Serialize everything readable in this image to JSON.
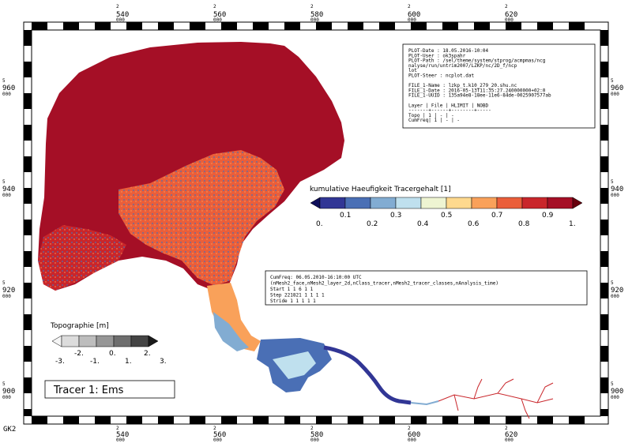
{
  "colors": {
    "tracer_high": "#a50f26",
    "topo_dark": "#1b1b1b"
  },
  "axes": {
    "x_tick_values": [
      {
        "top": "2",
        "main": "540",
        "sub": "000"
      },
      {
        "top": "2",
        "main": "560",
        "sub": "000"
      },
      {
        "top": "2",
        "main": "580",
        "sub": "000"
      },
      {
        "top": "2",
        "main": "600",
        "sub": "000"
      },
      {
        "top": "2",
        "main": "620",
        "sub": "000"
      }
    ],
    "y_tick_values": [
      {
        "top": "5",
        "main": "960",
        "sub": "000"
      },
      {
        "top": "5",
        "main": "940",
        "sub": "000"
      },
      {
        "top": "5",
        "main": "920",
        "sub": "000"
      },
      {
        "top": "5",
        "main": "900",
        "sub": "000"
      }
    ],
    "projection_label": "GK2"
  },
  "info_box": {
    "lines": [
      "PLOT-Date  : 18.05.2016-10:04",
      "PLOT-User  : ok3spahr",
      "PLOT-Path  : /sel/theme/system/stprog/acmpmas/ncg",
      "              nalyse/run/untrim2007/LZKP/nc/2D_f/ncp",
      "              lot",
      "PLOT-Steer : ncplot.dat",
      "",
      "FILE_1-Name : lzkp_t.k10_279_20.shu.nc",
      "FILE_1-Date : 2016-05-13T11:35:27.240000000+02:0",
      "FILE_1-UUID : 135a94e8-18ee-11e6-84de-0025907577ab",
      "",
      "Layer  | File | HLIMIT | NOBD",
      "-------+------+--------+-----",
      "Topo   |  1   |   -    |  -",
      "CumFreq|  1   |   -    |  -"
    ]
  },
  "tracer_legend": {
    "title": "kumulative Haeufigkeit Tracergehalt [1]",
    "labels_upper": [
      "0.1",
      "0.3",
      "0.5",
      "0.7",
      "0.9"
    ],
    "labels_lower": [
      "0.",
      "0.2",
      "0.4",
      "0.6",
      "0.8",
      "1."
    ],
    "colors": [
      "#313695",
      "#4a6fb5",
      "#82acd2",
      "#bfe0ee",
      "#eef4d2",
      "#fed98e",
      "#f9a15a",
      "#ea5e3a",
      "#c9262b",
      "#a50f26"
    ],
    "ends": {
      "low": "#0e0e5a",
      "high": "#67000d"
    }
  },
  "cumfreq_box": {
    "lines": [
      "CumFreq: 06.05.2010-16:10:00 UTC",
      "(nMesh2_face,nMesh2_layer_2d,nClass_tracer,nMesh2_tracer_classes,nAnalysis_time)",
      "Start      1         1       6        1        1",
      "Step  221821         1       1        1        1",
      "Stride     1         1       1        1        1"
    ]
  },
  "topo_legend": {
    "title": "Topographie [m]",
    "labels_upper": [
      "-2.",
      "0.",
      "2."
    ],
    "labels_lower": [
      "-3.",
      "-1.",
      "1.",
      "3."
    ],
    "colors": [
      "#f5f5f5",
      "#dcdcdc",
      "#bdbdbd",
      "#969696",
      "#6e6e6e",
      "#444444",
      "#1b1b1b"
    ]
  },
  "caption": "Tracer 1: Ems"
}
